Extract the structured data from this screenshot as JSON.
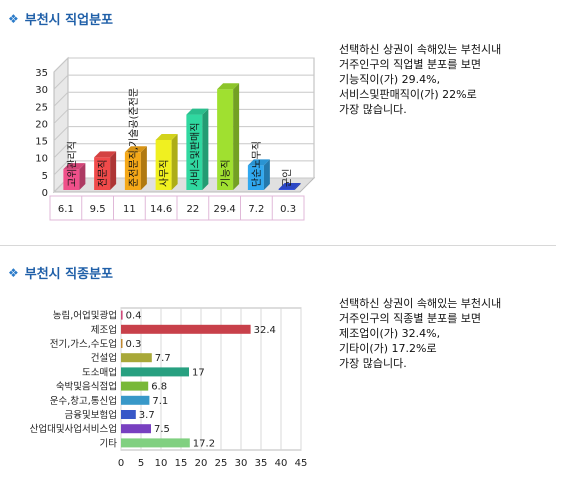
{
  "sections": [
    {
      "title": "부천시 직업분포",
      "desc": [
        "선택하신 상권이 속해있는 부천시내",
        "거주인구의 직업별 분포를 보면",
        "기능직이(가) 29.4%,",
        "서비스및판매직이(가) 22%로",
        "가장 많습니다."
      ]
    },
    {
      "title": "부천시 직종분포",
      "desc": [
        "선택하신 상권이 속해있는 부천시내",
        "거주인구의 직종별 분포를 보면",
        "제조업이(가) 32.4%,",
        "기타이(가) 17.2%로",
        "가장 많습니다."
      ]
    }
  ],
  "chart_data": [
    {
      "type": "bar",
      "title": "",
      "categories": [
        "고위관리직",
        "전문직",
        "준전문직,기술공(준전문",
        "사무직",
        "서비스및판매직",
        "기능직",
        "단순노무직",
        "군인"
      ],
      "values": [
        6.1,
        9.5,
        11,
        14.6,
        22,
        29.4,
        7.2,
        0.3
      ],
      "colors": [
        "#f0508a",
        "#f04a4a",
        "#f5a818",
        "#f0f020",
        "#30d8a0",
        "#a0e030",
        "#30a8f0",
        "#3050e0"
      ],
      "value_labels": [
        "6.1",
        "9.5",
        "11",
        "14.6",
        "22",
        "29.4",
        "7.2",
        "0.3"
      ],
      "yticks": [
        "0",
        "5",
        "10",
        "15",
        "20",
        "25",
        "30",
        "35"
      ],
      "ylim": [
        0,
        35
      ],
      "grid": true
    },
    {
      "type": "bar",
      "orientation": "horizontal",
      "title": "",
      "categories": [
        "농림,어업및광업",
        "제조업",
        "전기,가스,수도업",
        "건설업",
        "도소매업",
        "숙박및음식점업",
        "운수,창고,통신업",
        "금융및보험업",
        "산업대및사업서비스업",
        "기타"
      ],
      "values": [
        0.4,
        32.4,
        0.3,
        7.7,
        17,
        6.8,
        7.1,
        3.7,
        7.5,
        17.2
      ],
      "colors": [
        "#d04a7a",
        "#c8404a",
        "#c08830",
        "#a8a838",
        "#28a080",
        "#78b838",
        "#3898c8",
        "#3858c8",
        "#7840c0",
        "#80d080"
      ],
      "value_labels": [
        "0.4",
        "32.4",
        "0.3",
        "7.7",
        "17",
        "6.8",
        "7.1",
        "3.7",
        "7.5",
        "17.2"
      ],
      "xticks": [
        "0",
        "5",
        "10",
        "15",
        "20",
        "25",
        "30",
        "35",
        "40",
        "45"
      ],
      "xlim": [
        0,
        45
      ],
      "grid": true
    }
  ]
}
